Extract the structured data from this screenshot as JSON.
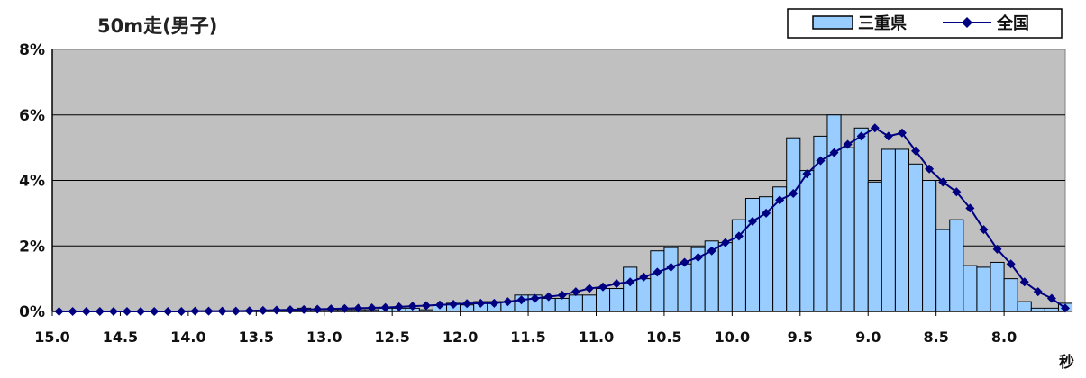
{
  "chart_data": {
    "type": "bar",
    "title": "50m走(男子)",
    "xlabel": "秒",
    "ylabel": "",
    "ylim": [
      0,
      8
    ],
    "xlim": [
      15.0,
      7.55
    ],
    "x_reversed": true,
    "y_tick_labels": [
      "0%",
      "2%",
      "4%",
      "6%",
      "8%"
    ],
    "x_tick_labels": [
      "15.0",
      "14.5",
      "14.0",
      "13.5",
      "13.0",
      "12.5",
      "12.0",
      "11.5",
      "11.0",
      "10.5",
      "10.0",
      "9.5",
      "9.0",
      "8.5",
      "8.0"
    ],
    "grid": true,
    "legend_position": "top-right",
    "colors": {
      "plot_background": "#c0c0c0",
      "bar_fill": "#99ccff",
      "bar_stroke": "#000000",
      "line": "#000080",
      "gridline": "#000000"
    },
    "x": [
      15.0,
      14.9,
      14.8,
      14.7,
      14.6,
      14.5,
      14.4,
      14.3,
      14.2,
      14.1,
      14.0,
      13.9,
      13.8,
      13.7,
      13.6,
      13.5,
      13.4,
      13.3,
      13.2,
      13.1,
      13.0,
      12.9,
      12.8,
      12.7,
      12.6,
      12.5,
      12.4,
      12.3,
      12.2,
      12.1,
      12.0,
      11.9,
      11.8,
      11.7,
      11.6,
      11.5,
      11.4,
      11.3,
      11.2,
      11.1,
      11.0,
      10.9,
      10.8,
      10.7,
      10.6,
      10.5,
      10.4,
      10.3,
      10.2,
      10.1,
      10.0,
      9.9,
      9.8,
      9.7,
      9.6,
      9.5,
      9.4,
      9.3,
      9.2,
      9.1,
      9.0,
      8.9,
      8.8,
      8.7,
      8.6,
      8.5,
      8.4,
      8.3,
      8.2,
      8.1,
      8.0,
      7.9,
      7.8,
      7.7,
      7.6
    ],
    "series": [
      {
        "name": "三重県",
        "type": "bar",
        "values": [
          0,
          0,
          0,
          0,
          0,
          0,
          0,
          0,
          0,
          0,
          0,
          0,
          0,
          0,
          0,
          0,
          0,
          0,
          0.1,
          0.05,
          0.05,
          0.05,
          0.05,
          0.05,
          0.1,
          0.1,
          0.1,
          0.05,
          0.2,
          0.25,
          0.2,
          0.3,
          0.3,
          0.3,
          0.5,
          0.5,
          0.4,
          0.4,
          0.5,
          0.5,
          0.7,
          0.7,
          1.35,
          1.0,
          1.85,
          1.95,
          1.45,
          1.95,
          2.15,
          2.1,
          2.8,
          3.45,
          3.5,
          3.8,
          5.3,
          4.3,
          5.35,
          6.0,
          5.0,
          5.6,
          3.95,
          4.95,
          4.95,
          4.5,
          4.0,
          2.5,
          2.8,
          1.4,
          1.35,
          1.5,
          1.0,
          0.3,
          0.1,
          0.1,
          0.25
        ]
      },
      {
        "name": "全国",
        "type": "line",
        "values": [
          0,
          0,
          0,
          0,
          0,
          0,
          0,
          0,
          0,
          0,
          0.01,
          0.01,
          0.01,
          0.01,
          0.02,
          0.03,
          0.04,
          0.05,
          0.06,
          0.07,
          0.08,
          0.09,
          0.1,
          0.11,
          0.12,
          0.14,
          0.16,
          0.18,
          0.2,
          0.22,
          0.24,
          0.25,
          0.25,
          0.3,
          0.35,
          0.4,
          0.45,
          0.5,
          0.6,
          0.7,
          0.75,
          0.85,
          0.9,
          1.05,
          1.2,
          1.35,
          1.5,
          1.65,
          1.85,
          2.1,
          2.3,
          2.75,
          3.0,
          3.4,
          3.6,
          4.2,
          4.6,
          4.85,
          5.1,
          5.35,
          5.6,
          5.35,
          5.45,
          4.9,
          4.35,
          3.95,
          3.65,
          3.15,
          2.5,
          1.9,
          1.45,
          0.9,
          0.6,
          0.4,
          0.1
        ]
      }
    ]
  }
}
